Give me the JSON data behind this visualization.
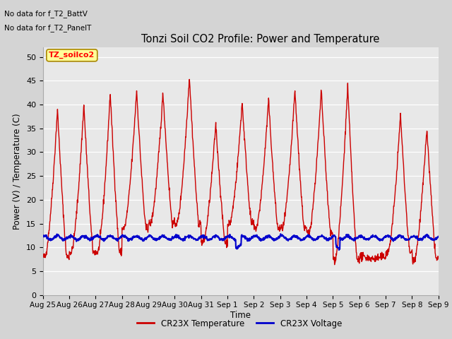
{
  "title": "Tonzi Soil CO2 Profile: Power and Temperature",
  "ylabel": "Power (V) / Temperature (C)",
  "xlabel": "Time",
  "top_left_text_line1": "No data for f_T2_BattV",
  "top_left_text_line2": "No data for f_T2_PanelT",
  "box_label": "TZ_soilco2",
  "ylim": [
    0,
    52
  ],
  "yticks": [
    0,
    5,
    10,
    15,
    20,
    25,
    30,
    35,
    40,
    45,
    50
  ],
  "xtick_labels": [
    "Aug 25",
    "Aug 26",
    "Aug 27",
    "Aug 28",
    "Aug 29",
    "Aug 30",
    "Aug 31",
    "Sep 1",
    "Sep 2",
    "Sep 3",
    "Sep 4",
    "Sep 5",
    "Sep 6",
    "Sep 7",
    "Sep 8",
    "Sep 9"
  ],
  "plot_bg_color": "#e8e8e8",
  "red_color": "#cc0000",
  "blue_color": "#0000cc",
  "legend_red_label": "CR23X Temperature",
  "legend_blue_label": "CR23X Voltage",
  "red_peaks": [
    39,
    40,
    42.5,
    43,
    42.5,
    46,
    36,
    40.5,
    41,
    43,
    43,
    44,
    7.5,
    38,
    35,
    36
  ],
  "red_mins": [
    8,
    9,
    9,
    14,
    15,
    15,
    11,
    15,
    14,
    14,
    13,
    7.5,
    8,
    9,
    7.5,
    9
  ],
  "n_days": 15
}
